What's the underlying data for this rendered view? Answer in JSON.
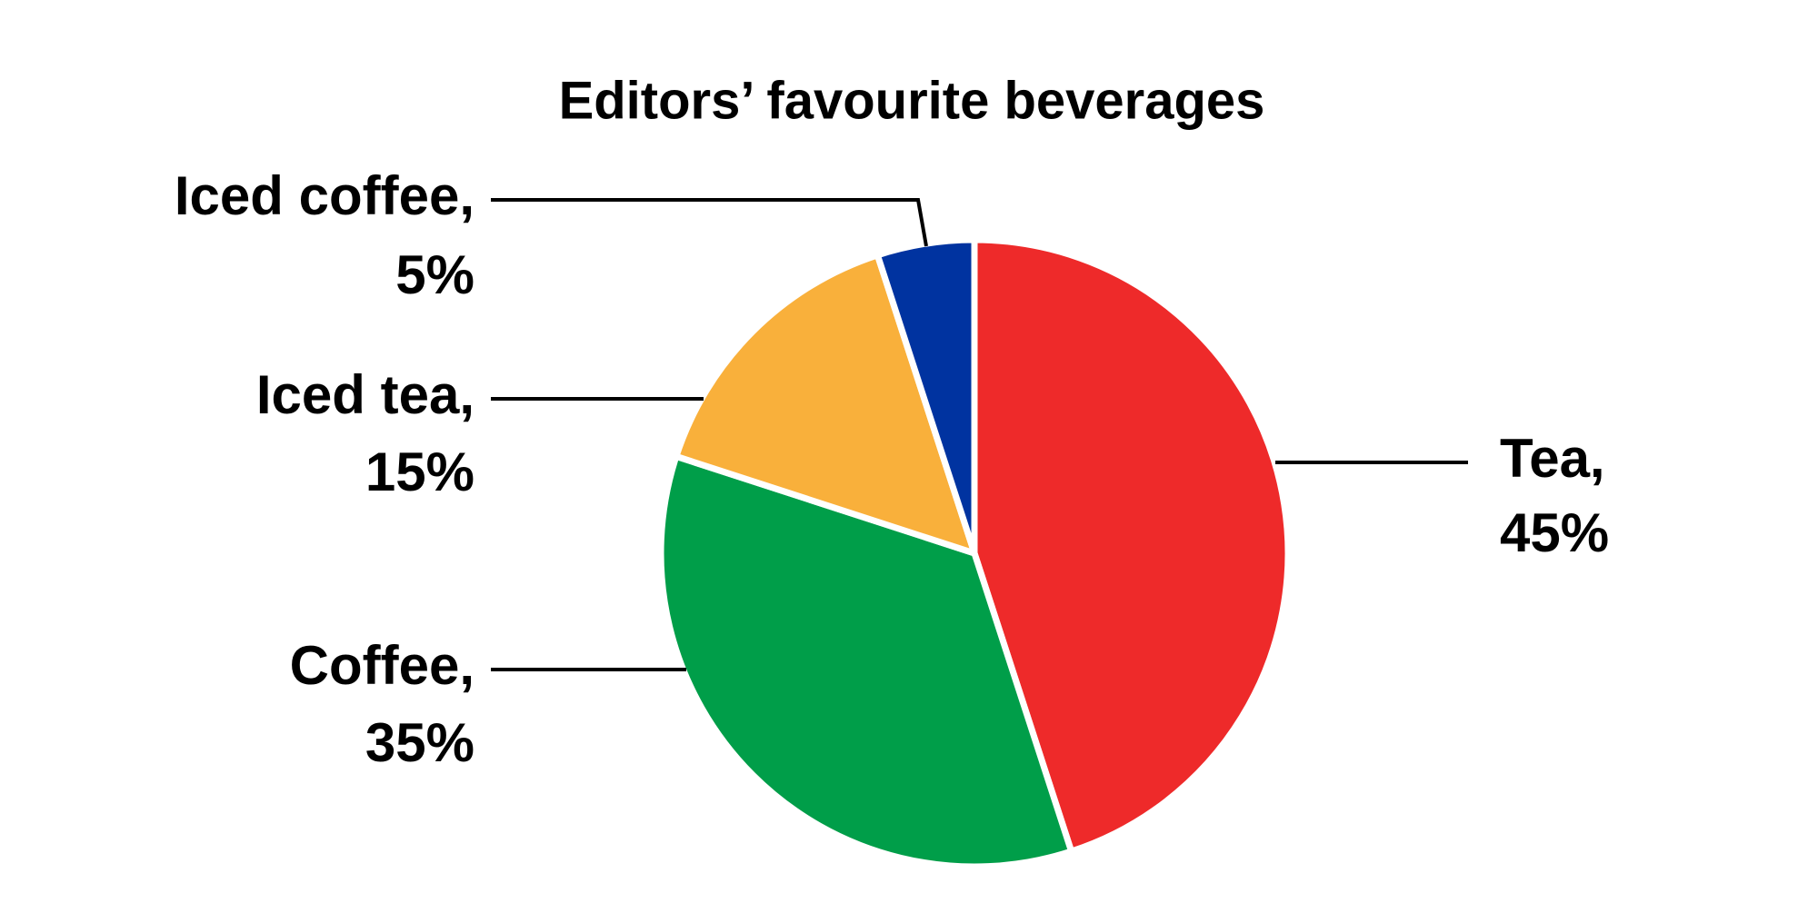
{
  "chart_data": {
    "type": "pie",
    "title": "Editors’ favourite beverages",
    "categories": [
      "Tea,",
      "Coffee,",
      "Iced tea,",
      "Iced coffee,"
    ],
    "values": [
      45,
      35,
      15,
      5
    ],
    "value_labels": [
      "45%",
      "35%",
      "15%",
      "5%"
    ],
    "colors": [
      "#ee2a2a",
      "#009e49",
      "#f9b03b",
      "#0033a0"
    ]
  }
}
